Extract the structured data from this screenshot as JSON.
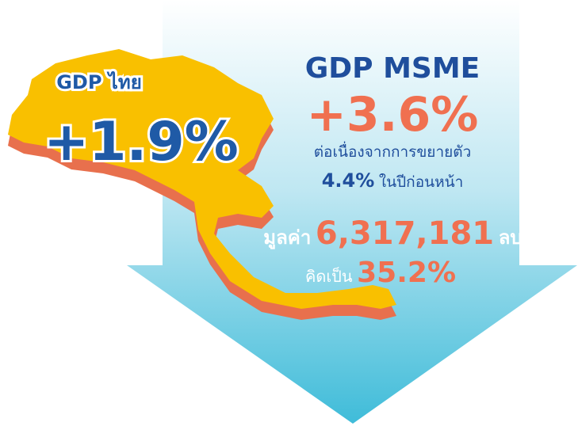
{
  "thailand": {
    "label": "GDP ไทย",
    "value": "+1.9%"
  },
  "msme": {
    "label": "GDP MSME",
    "value": "+3.6%",
    "note_line1": "ต่อเนื่องจากการขยายตัว",
    "prev_value": "4.4%",
    "prev_text": "ในปีก่อนหน้า",
    "worth_label": "มูลค่า",
    "worth_value": "6,317,181",
    "worth_unit": "ลบ.",
    "share_label": "คิดเป็น",
    "share_value": "35.2%"
  }
}
